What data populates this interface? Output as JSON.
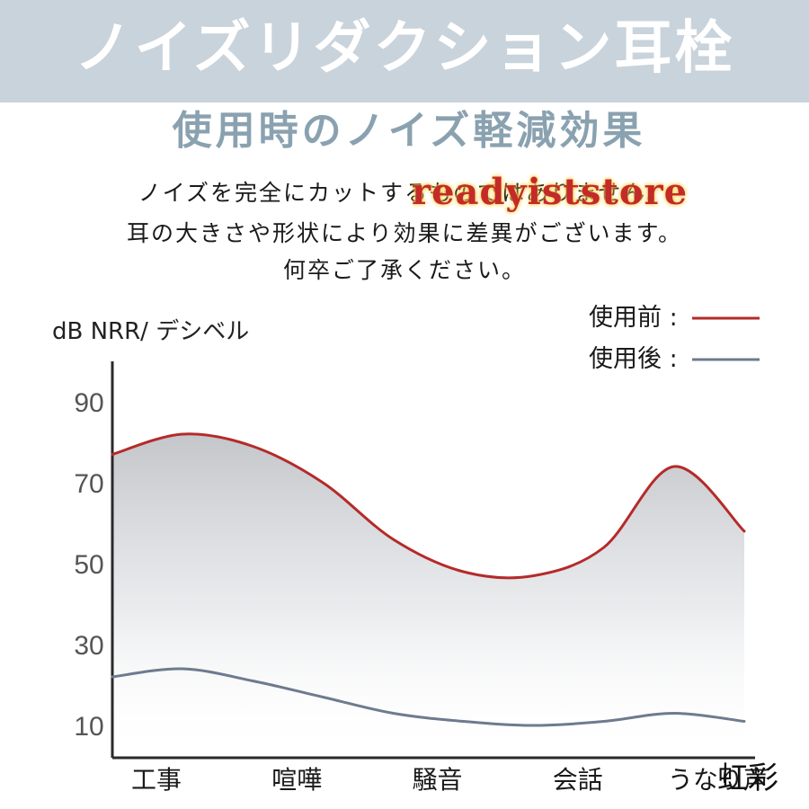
{
  "banner": {
    "title": "ノイズリダクション耳栓"
  },
  "subtitle": "使用時のノイズ軽減効果",
  "notes": [
    "ノイズを完全にカットするものではありません。",
    "耳の大きさや形状により効果に差異がございます。",
    "何卒ご了承ください。"
  ],
  "watermark": "readyiststore",
  "corner_mark": "虹彩",
  "chart_data": {
    "type": "line",
    "ylabel": "dB NRR/ デシベル",
    "yticks": [
      "90",
      "70",
      "50",
      "30",
      "10"
    ],
    "ytick_values": [
      90,
      70,
      50,
      30,
      10
    ],
    "ylim": [
      2,
      100
    ],
    "categories": [
      "工事",
      "喧嘩",
      "騒音",
      "会話",
      "うなり声"
    ],
    "grid": false,
    "legend_position": "top-right",
    "series": [
      {
        "name": "使用前 :",
        "color": "#b52a2a",
        "x": [
          0,
          0.5,
          1,
          1.5,
          2,
          2.5,
          3,
          3.5,
          4,
          4.5
        ],
        "values": [
          77,
          82,
          79,
          70,
          56,
          48,
          47,
          54,
          74,
          58
        ]
      },
      {
        "name": "使用後 :",
        "color": "#6d7b8d",
        "x": [
          0,
          0.5,
          1,
          1.5,
          2,
          2.5,
          3,
          3.5,
          4,
          4.5
        ],
        "values": [
          22,
          24,
          21,
          17,
          13,
          11,
          10,
          11,
          13,
          11
        ]
      }
    ]
  }
}
